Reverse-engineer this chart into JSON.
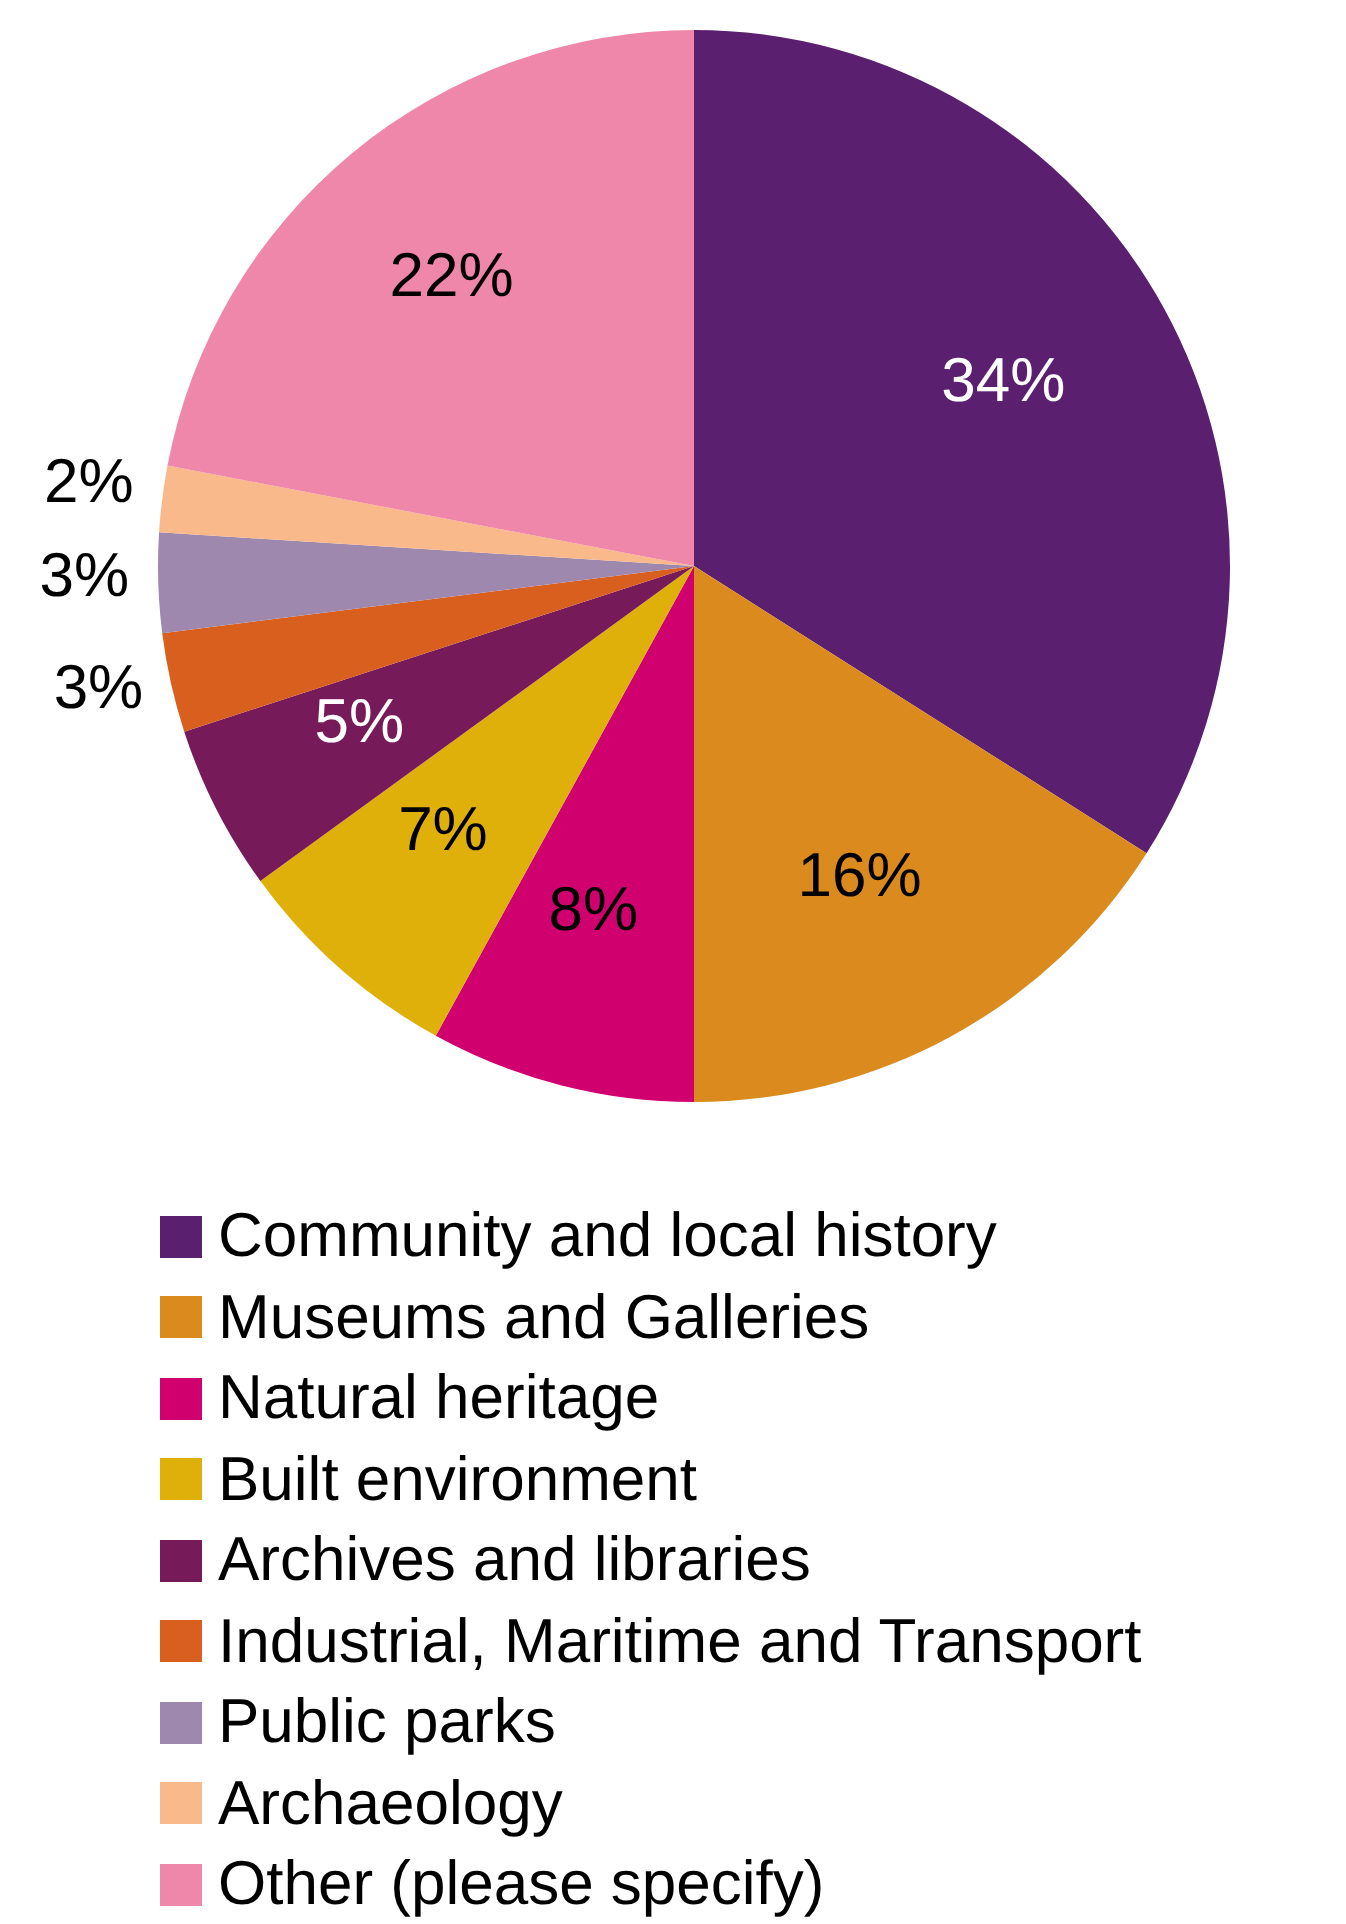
{
  "chart_data": {
    "type": "pie",
    "categories": [
      "Community and local history",
      "Museums and Galleries",
      "Natural heritage",
      "Built environment",
      "Archives and libraries",
      "Industrial, Maritime and Transport",
      "Public parks",
      "Archaeology",
      "Other (please specify)"
    ],
    "values": [
      34,
      16,
      8,
      7,
      5,
      3,
      3,
      2,
      22
    ],
    "colors": [
      "#5b1f70",
      "#db8a1e",
      "#d0006f",
      "#e0b00a",
      "#761a5a",
      "#d95f1e",
      "#9e88ad",
      "#f9b98a",
      "#ef87aa"
    ],
    "value_labels": [
      "34%",
      "16%",
      "8%",
      "7%",
      "5%",
      "3%",
      "3%",
      "2%",
      "22%"
    ],
    "legend": "bottom"
  }
}
